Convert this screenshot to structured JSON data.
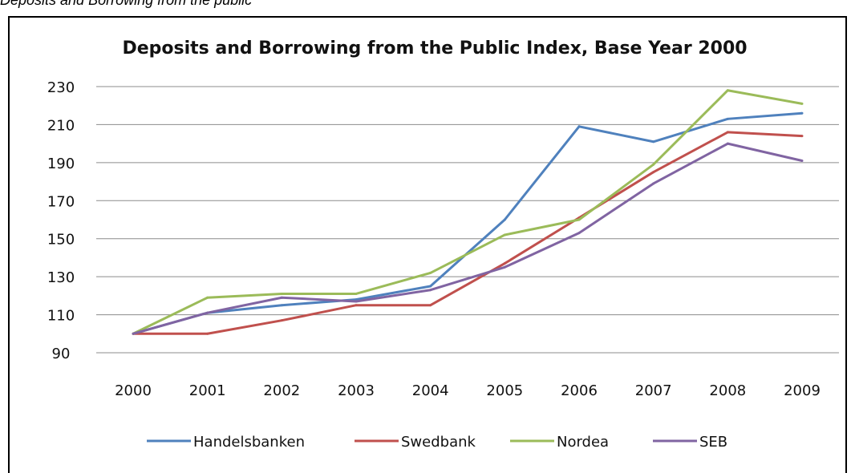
{
  "caption": "Deposits and Borrowing from the public",
  "chart_data": {
    "type": "line",
    "title": "Deposits and Borrowing from the Public Index, Base Year 2000",
    "xlabel": "",
    "ylabel": "",
    "categories": [
      "2000",
      "2001",
      "2002",
      "2003",
      "2004",
      "2005",
      "2006",
      "2007",
      "2008",
      "2009"
    ],
    "y_ticks": [
      "230",
      "210",
      "190",
      "170",
      "150",
      "130",
      "110",
      "90"
    ],
    "ylim": [
      90,
      230
    ],
    "grid": true,
    "legend_position": "bottom",
    "series": [
      {
        "name": "Handelsbanken",
        "color": "#4F81BD",
        "values": [
          100,
          111,
          115,
          118,
          125,
          160,
          209,
          201,
          213,
          216
        ]
      },
      {
        "name": "Swedbank",
        "color": "#C0504D",
        "values": [
          100,
          100,
          107,
          115,
          115,
          137,
          161,
          185,
          206,
          204
        ]
      },
      {
        "name": "Nordea",
        "color": "#9BBB59",
        "values": [
          100,
          119,
          121,
          121,
          132,
          152,
          160,
          189,
          228,
          221
        ]
      },
      {
        "name": "SEB",
        "color": "#8064A2",
        "values": [
          100,
          111,
          119,
          117,
          123,
          135,
          153,
          179,
          200,
          191
        ]
      }
    ]
  }
}
